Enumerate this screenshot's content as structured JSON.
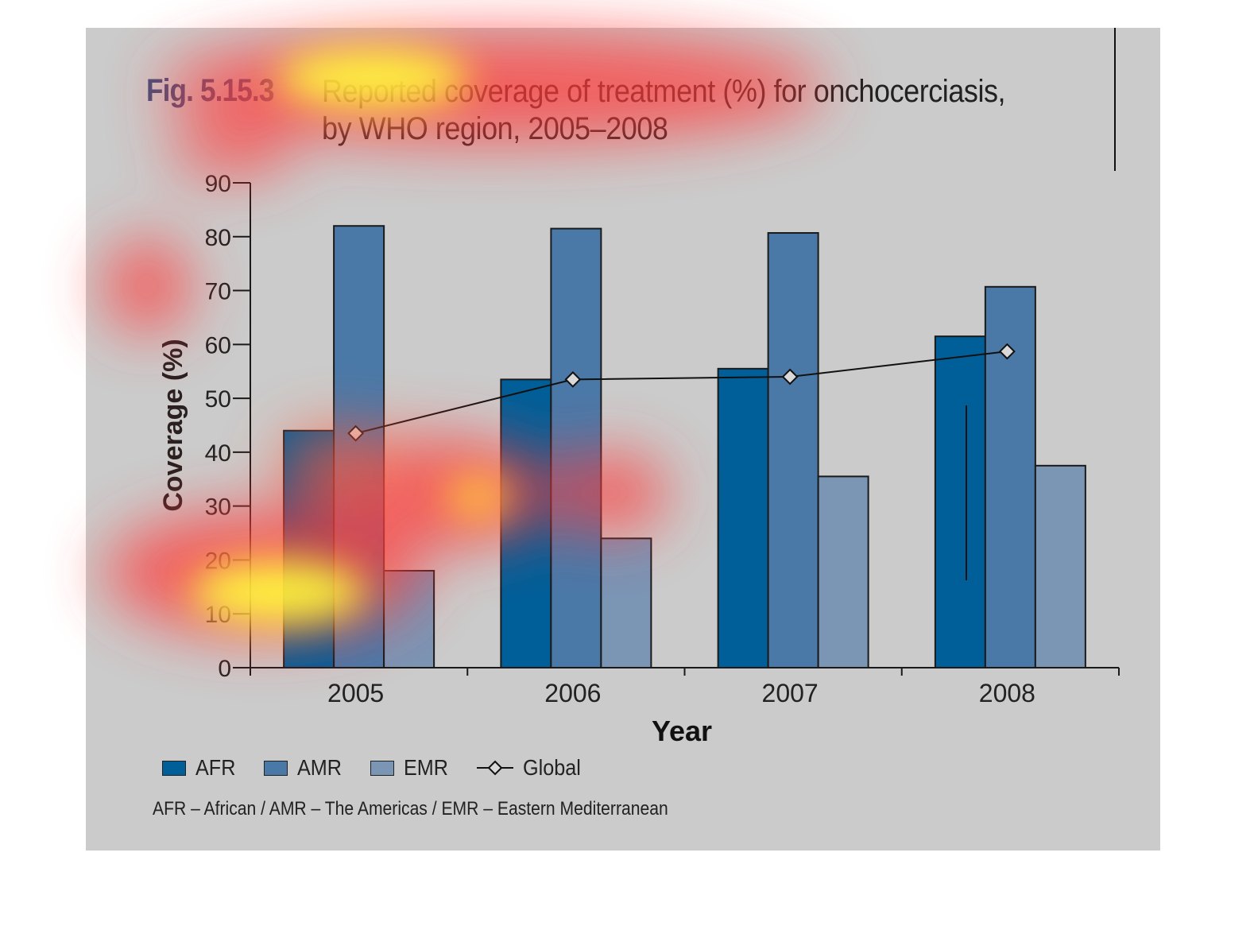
{
  "figure": {
    "label": "Fig. 5.15.3",
    "title_lines": [
      "Reported coverage of treatment (%) for onchocerciasis,",
      "by WHO region, 2005–2008"
    ]
  },
  "chart_data": {
    "type": "bar",
    "title": "Reported coverage of treatment (%) for onchocerciasis, by WHO region, 2005–2008",
    "xlabel": "Year",
    "ylabel": "Coverage (%)",
    "ylim": [
      0,
      90
    ],
    "yticks": [
      0,
      10,
      20,
      30,
      40,
      50,
      60,
      70,
      80,
      90
    ],
    "categories": [
      "2005",
      "2006",
      "2007",
      "2008"
    ],
    "series": [
      {
        "name": "AFR",
        "type": "bar",
        "color": "#005f99",
        "values": [
          44,
          53.5,
          55.5,
          61.5
        ]
      },
      {
        "name": "AMR",
        "type": "bar",
        "color": "#4a79a8",
        "values": [
          82,
          81.5,
          80.7,
          70.7
        ]
      },
      {
        "name": "EMR",
        "type": "bar",
        "color": "#7b95b5",
        "values": [
          18,
          24,
          35.5,
          37.5
        ]
      },
      {
        "name": "Global",
        "type": "line",
        "marker": "diamond",
        "color": "#111111",
        "values": [
          43.5,
          53.5,
          54,
          58.7
        ]
      }
    ],
    "legend_position": "bottom-left",
    "grid": false
  },
  "legend": [
    {
      "label": "AFR",
      "color": "#005f99",
      "kind": "bar"
    },
    {
      "label": "AMR",
      "color": "#4a79a8",
      "kind": "bar"
    },
    {
      "label": "EMR",
      "color": "#7b95b5",
      "kind": "bar"
    },
    {
      "label": "Global",
      "color": "#111111",
      "kind": "line-diamond"
    }
  ],
  "footnote": "AFR – African / AMR – The Americas / EMR – Eastern Mediterranean",
  "colors": {
    "panel_background": "#cbcbcb",
    "figure_label": "#3d4f7a"
  }
}
